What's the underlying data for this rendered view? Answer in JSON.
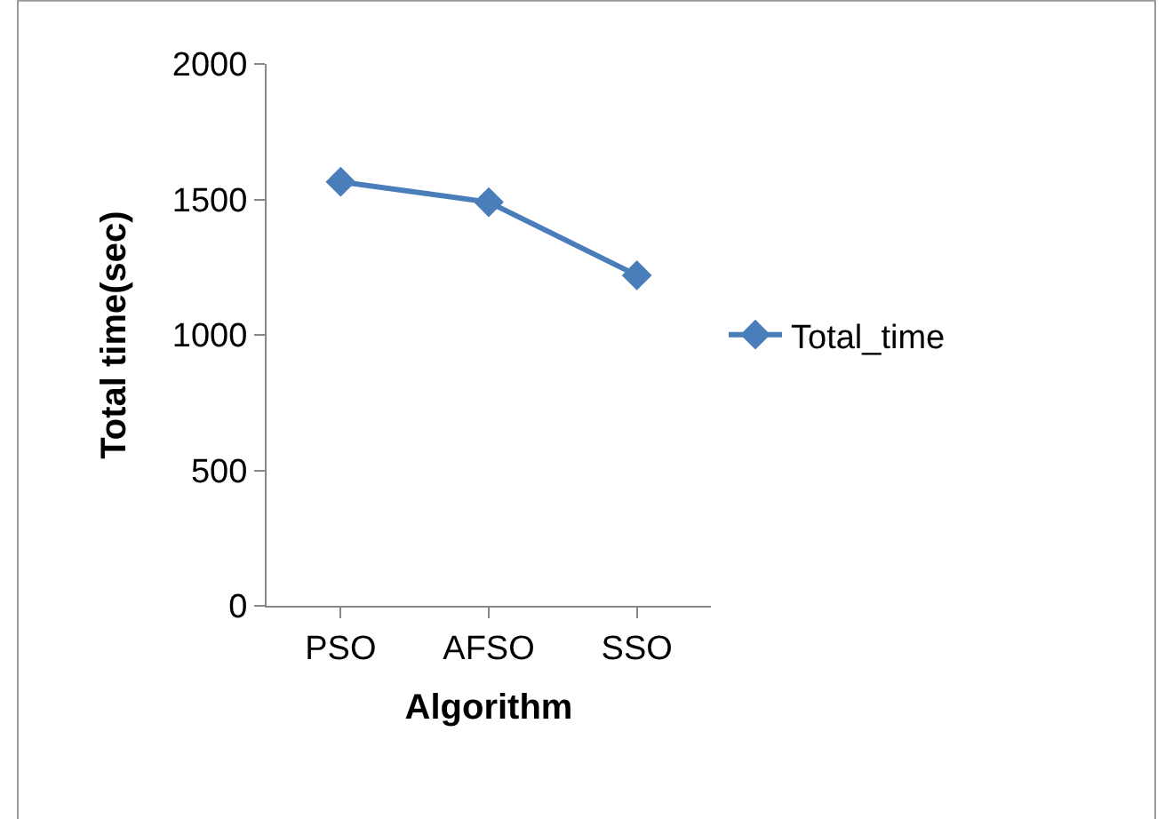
{
  "chart_data": {
    "type": "line",
    "xlabel": "Algorithm",
    "ylabel": "Total time(sec)",
    "categories": [
      "PSO",
      "AFSO",
      "SSO"
    ],
    "series": [
      {
        "name": "Total_time",
        "color": "#4a7ebb",
        "values": [
          1565,
          1490,
          1220
        ]
      }
    ],
    "ylim": [
      0,
      2000
    ],
    "yticks": [
      0,
      500,
      1000,
      1500,
      2000
    ],
    "grid": false,
    "legend": "right",
    "marker": "diamond",
    "line_style": "solid"
  }
}
